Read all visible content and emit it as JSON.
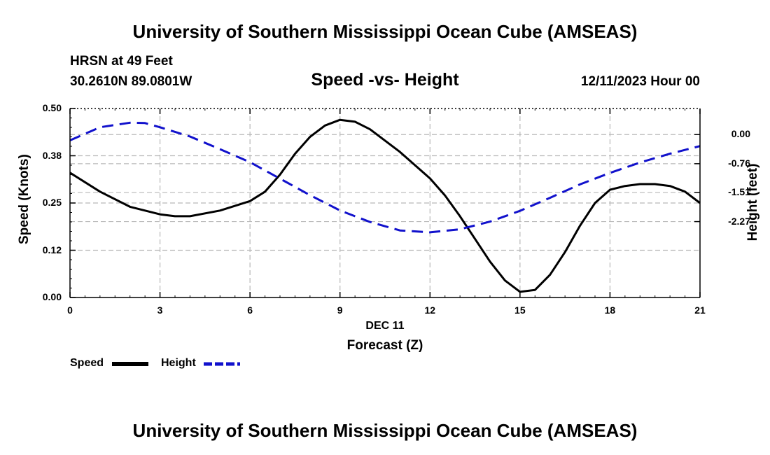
{
  "header": {
    "title": "University of Southern Mississippi Ocean Cube (AMSEAS)",
    "station": "HRSN at 49 Feet",
    "coords": "30.2610N  89.0801W",
    "datetime": "12/11/2023 Hour 00",
    "footer_title": "University of Southern Mississippi Ocean Cube (AMSEAS)"
  },
  "colors": {
    "speed": "#000000",
    "height": "#1111cc",
    "grid": "#b8b8b8"
  },
  "chart_data": {
    "type": "line",
    "title": "Speed -vs- Height",
    "xlabel": "Forecast (Z)",
    "xsublabel": "DEC 11",
    "ylabel": "Speed (Knots)",
    "y2label": "Height (feet)",
    "xlim": [
      0,
      21
    ],
    "ylim": [
      0,
      0.5
    ],
    "y2lim": [
      -4.25,
      0.68
    ],
    "xticks": [
      0,
      3,
      6,
      9,
      12,
      15,
      18,
      21
    ],
    "xtick_labels": [
      "0",
      "3",
      "6",
      "9",
      "12",
      "15",
      "18",
      "21"
    ],
    "yticks": [
      0.0,
      0.125,
      0.25,
      0.375,
      0.5
    ],
    "ytick_labels": [
      "0.00",
      "0.12",
      "0.25",
      "0.38",
      "0.50"
    ],
    "y2ticks": [
      0.0,
      -0.76,
      -1.51,
      -2.27
    ],
    "y2tick_labels": [
      "0.00",
      "-0.76",
      "-1.51",
      "-2.27"
    ],
    "grid": true,
    "legend": [
      "Speed",
      "Height"
    ],
    "series": [
      {
        "name": "Speed",
        "axis": "left",
        "style": "solid",
        "x": [
          0,
          1,
          2,
          3,
          3.5,
          4,
          5,
          6,
          6.5,
          7,
          7.5,
          8,
          8.5,
          9,
          9.5,
          10,
          11,
          12,
          12.5,
          13,
          13.5,
          14,
          14.5,
          15,
          15.5,
          16,
          16.5,
          17,
          17.5,
          18,
          18.5,
          19,
          19.5,
          20,
          20.5,
          21
        ],
        "values": [
          0.33,
          0.28,
          0.24,
          0.22,
          0.215,
          0.215,
          0.23,
          0.255,
          0.28,
          0.325,
          0.38,
          0.425,
          0.455,
          0.47,
          0.465,
          0.445,
          0.385,
          0.315,
          0.27,
          0.215,
          0.155,
          0.095,
          0.045,
          0.015,
          0.02,
          0.06,
          0.12,
          0.19,
          0.25,
          0.285,
          0.295,
          0.3,
          0.3,
          0.295,
          0.28,
          0.25
        ]
      },
      {
        "name": "Height",
        "axis": "right",
        "style": "dashed",
        "x": [
          0,
          1,
          2,
          2.5,
          3,
          4,
          5,
          6,
          7,
          8,
          9,
          10,
          11,
          12,
          13,
          14,
          15,
          16,
          17,
          18,
          19,
          20,
          21
        ],
        "values": [
          -0.15,
          0.19,
          0.31,
          0.3,
          0.19,
          -0.05,
          -0.38,
          -0.72,
          -1.15,
          -1.58,
          -1.98,
          -2.28,
          -2.5,
          -2.55,
          -2.47,
          -2.27,
          -1.99,
          -1.65,
          -1.3,
          -1.0,
          -0.73,
          -0.5,
          -0.3
        ]
      }
    ]
  }
}
